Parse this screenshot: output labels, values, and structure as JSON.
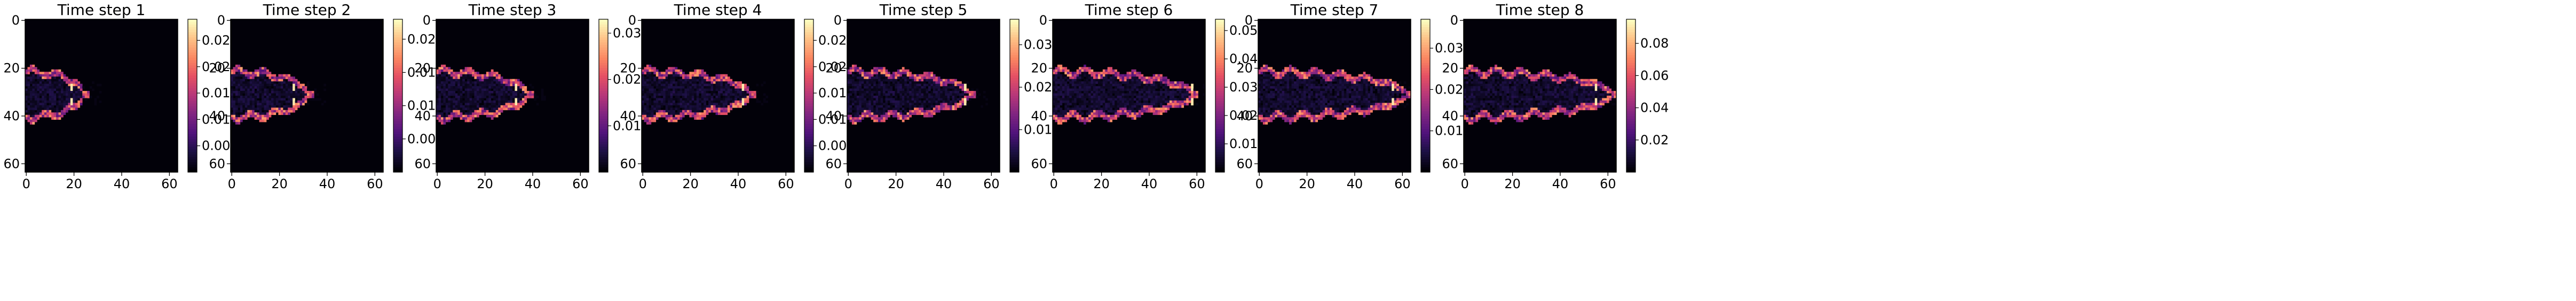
{
  "chart_data": [
    {
      "type": "heatmap",
      "title": "Time step 1",
      "xticks": [
        "0",
        "20",
        "40",
        "60"
      ],
      "yticks": [
        "0",
        "20",
        "40",
        "60"
      ],
      "colorbar": {
        "min": 0,
        "max": 0.029,
        "ticks": [
          "0.005",
          "0.010",
          "0.015",
          "0.020",
          "0.025"
        ]
      },
      "peak_x": 19,
      "front_x": 24
    },
    {
      "type": "heatmap",
      "title": "Time step 2",
      "xticks": [
        "0",
        "20",
        "40",
        "60"
      ],
      "yticks": [
        "0",
        "20",
        "40",
        "60"
      ],
      "colorbar": {
        "min": 0,
        "max": 0.023,
        "ticks": [
          "0.005",
          "0.010",
          "0.015",
          "0.020"
        ]
      },
      "peak_x": 26,
      "front_x": 32
    },
    {
      "type": "heatmap",
      "title": "Time step 3",
      "xticks": [
        "0",
        "20",
        "40",
        "60"
      ],
      "yticks": [
        "0",
        "20",
        "40",
        "60"
      ],
      "colorbar": {
        "min": 0,
        "max": 0.033,
        "ticks": [
          "0.01",
          "0.02",
          "0.03"
        ]
      },
      "peak_x": 33,
      "front_x": 38
    },
    {
      "type": "heatmap",
      "title": "Time step 4",
      "xticks": [
        "0",
        "20",
        "40",
        "60"
      ],
      "yticks": [
        "0",
        "20",
        "40",
        "60"
      ],
      "colorbar": {
        "min": 0,
        "max": 0.029,
        "ticks": [
          "0.005",
          "0.010",
          "0.015",
          "0.020",
          "0.025"
        ]
      },
      "peak_x": 42,
      "front_x": 45
    },
    {
      "type": "heatmap",
      "title": "Time step 5",
      "xticks": [
        "0",
        "20",
        "40",
        "60"
      ],
      "yticks": [
        "0",
        "20",
        "40",
        "60"
      ],
      "colorbar": {
        "min": 0,
        "max": 0.036,
        "ticks": [
          "0.01",
          "0.02",
          "0.03"
        ]
      },
      "peak_x": 49,
      "front_x": 51
    },
    {
      "type": "heatmap",
      "title": "Time step 6",
      "xticks": [
        "0",
        "20",
        "40",
        "60"
      ],
      "yticks": [
        "0",
        "20",
        "40",
        "60"
      ],
      "colorbar": {
        "min": 0,
        "max": 0.054,
        "ticks": [
          "0.01",
          "0.02",
          "0.03",
          "0.04",
          "0.05"
        ]
      },
      "peak_x": 58,
      "front_x": 58
    },
    {
      "type": "heatmap",
      "title": "Time step 7",
      "xticks": [
        "0",
        "20",
        "40",
        "60"
      ],
      "yticks": [
        "0",
        "20",
        "40",
        "60"
      ],
      "colorbar": {
        "min": 0,
        "max": 0.037,
        "ticks": [
          "0.01",
          "0.02",
          "0.03"
        ]
      },
      "peak_x": 56,
      "front_x": 62
    },
    {
      "type": "heatmap",
      "title": "Time step 8",
      "xticks": [
        "0",
        "20",
        "40",
        "60"
      ],
      "yticks": [
        "0",
        "20",
        "40",
        "60"
      ],
      "colorbar": {
        "min": 0,
        "max": 0.095,
        "ticks": [
          "0.02",
          "0.04",
          "0.06",
          "0.08"
        ]
      },
      "peak_x": 55,
      "front_x": 62
    }
  ],
  "colormap": "magma",
  "grid_size": 64
}
